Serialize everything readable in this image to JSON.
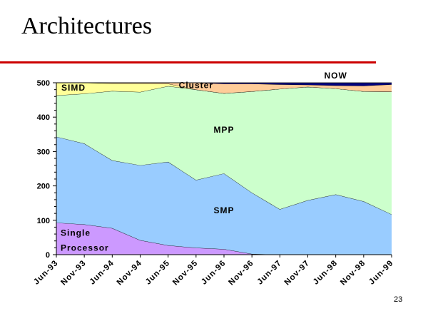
{
  "slide": {
    "title": "Architectures",
    "page_number": "23"
  },
  "colors": {
    "title_rule": "#cc0000",
    "Single Processor": "#cc99ff",
    "SMP": "#99ccff",
    "MPP": "#ccffcc",
    "SIMD": "#ffff99",
    "Cluster": "#ffcc99",
    "NOW": "#000080"
  },
  "chart_data": {
    "type": "area",
    "stacked": true,
    "categories": [
      "Jun-93",
      "Nov-93",
      "Jun-94",
      "Nov-94",
      "Jun-95",
      "Nov-95",
      "Jun-96",
      "Nov-96",
      "Jun-97",
      "Nov-97",
      "Jun-98",
      "Nov-98",
      "Jun-99"
    ],
    "series": [
      {
        "name": "Single\nProcessor",
        "values": [
          93,
          88,
          77,
          42,
          27,
          20,
          16,
          2,
          0,
          0,
          0,
          0,
          0
        ]
      },
      {
        "name": "SMP",
        "values": [
          250,
          235,
          197,
          218,
          243,
          197,
          220,
          178,
          132,
          158,
          175,
          155,
          117
        ]
      },
      {
        "name": "MPP",
        "values": [
          120,
          145,
          202,
          213,
          220,
          263,
          233,
          295,
          350,
          330,
          308,
          320,
          357
        ]
      },
      {
        "name": "SIMD",
        "values": [
          37,
          32,
          22,
          25,
          7,
          0,
          0,
          0,
          0,
          0,
          0,
          0,
          0
        ]
      },
      {
        "name": "Cluster",
        "values": [
          0,
          0,
          2,
          2,
          3,
          20,
          28,
          22,
          13,
          6,
          9,
          16,
          21
        ]
      },
      {
        "name": "NOW",
        "values": [
          0,
          0,
          0,
          0,
          0,
          0,
          3,
          3,
          5,
          6,
          8,
          9,
          5
        ]
      }
    ],
    "title": "",
    "xlabel": "",
    "ylabel": "",
    "ylim": [
      0,
      500
    ],
    "yticks": [
      0,
      100,
      200,
      300,
      400,
      500
    ],
    "grid": false,
    "legend": "none"
  }
}
